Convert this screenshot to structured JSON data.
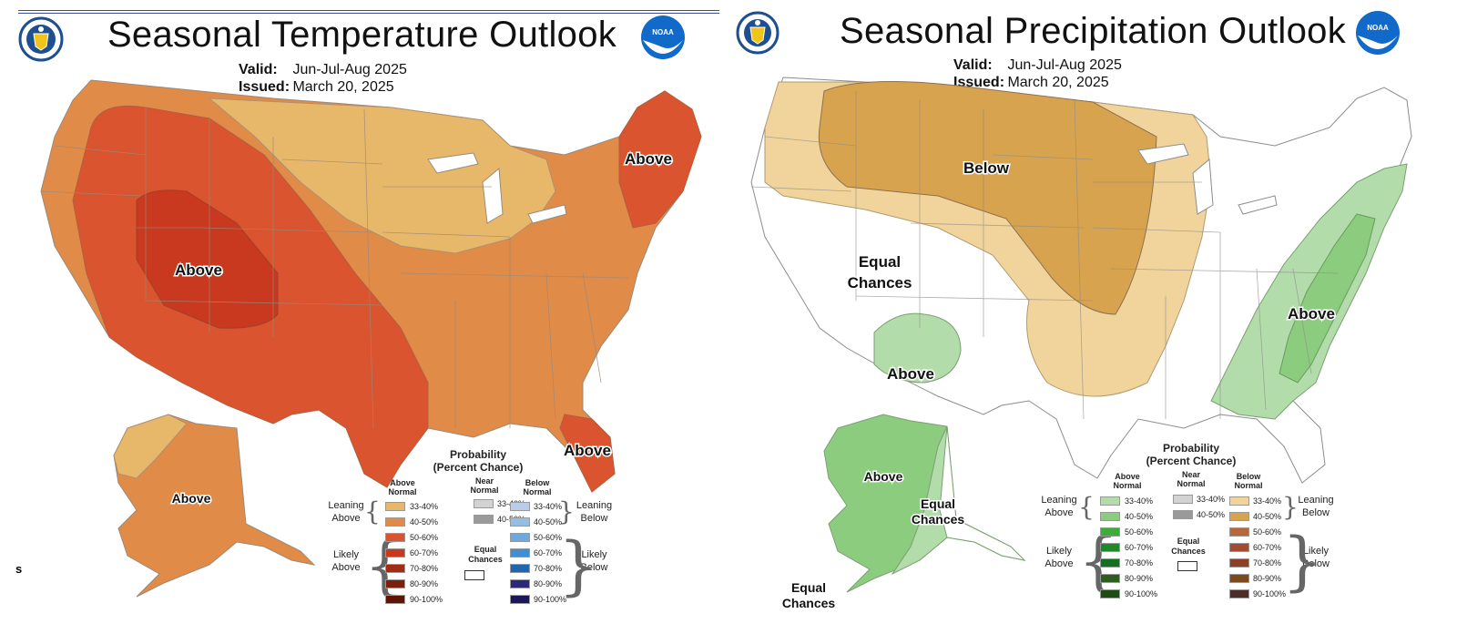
{
  "temperature": {
    "title": "Seasonal Temperature Outlook",
    "valid_label": "Valid:",
    "valid_value": "Jun-Jul-Aug 2025",
    "issued_label": "Issued:",
    "issued_value": "March 20, 2025",
    "region_labels": [
      "Above",
      "Above",
      "Above",
      "Above",
      "Above"
    ],
    "corner_text": "s"
  },
  "precipitation": {
    "title": "Seasonal Precipitation Outlook",
    "valid_label": "Valid:",
    "valid_value": "Jun-Jul-Aug 2025",
    "issued_label": "Issued:",
    "issued_value": "March 20, 2025",
    "region_labels": [
      "Below",
      "Equal",
      "Chances",
      "Above",
      "Above",
      "Above",
      "Equal",
      "Chances",
      "Equal",
      "Chances"
    ]
  },
  "legend": {
    "title_line1": "Probability",
    "title_line2": "(Percent Chance)",
    "col_above": [
      "Above",
      "Normal"
    ],
    "col_near": [
      "Near",
      "Normal"
    ],
    "col_below": [
      "Below",
      "Normal"
    ],
    "leaning_above": [
      "Leaning",
      "Above"
    ],
    "likely_above": [
      "Likely",
      "Above"
    ],
    "leaning_below": [
      "Leaning",
      "Below"
    ],
    "likely_below": [
      "Likely",
      "Below"
    ],
    "equal_chances": [
      "Equal",
      "Chances"
    ],
    "ranges": [
      "33-40%",
      "40-50%",
      "50-60%",
      "60-70%",
      "70-80%",
      "80-90%",
      "90-100%"
    ],
    "near_ranges": [
      "33-40%",
      "40-50%"
    ]
  },
  "colors": {
    "temp_above": [
      "#e8b86a",
      "#e08b48",
      "#d9542f",
      "#c8391f",
      "#a32b12",
      "#7e1f0d",
      "#5e1506"
    ],
    "temp_below": [
      "#b9cde8",
      "#98bde3",
      "#6fa8dc",
      "#3f8fd4",
      "#1f65b0",
      "#2b2a78",
      "#1c1759"
    ],
    "near": [
      "#d3d3d3",
      "#9a9a9a"
    ],
    "precip_above": [
      "#b3dcab",
      "#8ccc7e",
      "#3aad3a",
      "#1d8a2a",
      "#127020",
      "#2d5e20",
      "#1e4a14"
    ],
    "precip_below": [
      "#f1d49b",
      "#d8a34e",
      "#b8683a",
      "#a04b32",
      "#8e3f27",
      "#7a4a1d",
      "#4b2e28"
    ]
  }
}
